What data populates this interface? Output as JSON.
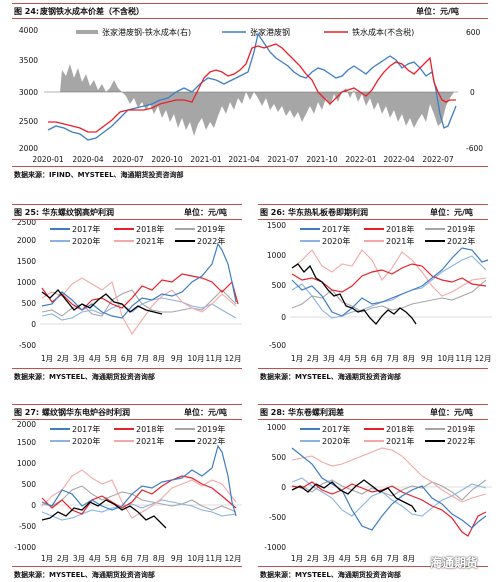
{
  "fig24": {
    "num": "图 24:",
    "title": "废钢铁水成本价差（不含税）",
    "unit": "单位：元/吨",
    "source": "数据来源：IFIND、MYSTEEL、海通期货投资咨询部",
    "chart_data": {
      "type": "line",
      "x": [
        "2020-01",
        "2020-04",
        "2020-07",
        "2020-10",
        "2021-01",
        "2021-04",
        "2021-07",
        "2021-10",
        "2022-01",
        "2022-04",
        "2022-07"
      ],
      "series": [
        {
          "name": "张家港废钢-铁水成本(右)",
          "color": "#a6a6a6",
          "kind": "area"
        },
        {
          "name": "张家港废钢",
          "color": "#3e7dc4"
        },
        {
          "name": "铁水成本(不含税)",
          "color": "#e8202a"
        }
      ],
      "y_left": {
        "min": 2000,
        "max": 4000,
        "ticks": [
          "2000",
          "2500",
          "3000",
          "3500",
          "4000"
        ]
      },
      "y_right": {
        "min": -600,
        "max": 600,
        "ticks": [
          "-600",
          "0",
          "600"
        ]
      }
    }
  },
  "fig25": {
    "num": "图 25:",
    "title": "华东螺纹钢高炉利润",
    "unit": "单位：元/吨",
    "source": "数据来源：MYSTEEL、海通期货投资咨询部",
    "chart_data": {
      "type": "line",
      "x": [
        "1月",
        "2月",
        "3月",
        "4月",
        "5月",
        "6月",
        "7月",
        "8月",
        "9月",
        "10月",
        "11月",
        "12月"
      ],
      "yticks": [
        "-500",
        "0",
        "500",
        "1000",
        "1500",
        "2000",
        "2500"
      ],
      "ylim": [
        -500,
        2500
      ]
    }
  },
  "fig26": {
    "num": "图 26:",
    "title": "华东热轧板卷即期利润",
    "unit": "单位：元/吨",
    "source": "数据来源：MYSTEEL、海通期货投资咨询部",
    "chart_data": {
      "type": "line",
      "x": [
        "1月",
        "2月",
        "3月",
        "4月",
        "5月",
        "6月",
        "7月",
        "8月",
        "9月",
        "10月",
        "11月",
        "12月"
      ],
      "yticks": [
        "-500",
        "0",
        "500",
        "1000",
        "1500"
      ],
      "ylim": [
        -500,
        1500
      ]
    }
  },
  "fig27": {
    "num": "图 27:",
    "title": "螺纹钢华东电炉谷时利润",
    "unit": "单位：元/吨",
    "source": "数据来源：MYSTEEL、海通期货投资咨询部",
    "chart_data": {
      "type": "line",
      "x": [
        "1月",
        "2月",
        "3月",
        "4月",
        "5月",
        "6月",
        "7月",
        "8月",
        "9月",
        "10月",
        "11月",
        "12月"
      ],
      "yticks": [
        "-1000",
        "-500",
        "0",
        "500",
        "1000",
        "1500",
        "2000"
      ],
      "ylim": [
        -1000,
        2000
      ]
    }
  },
  "fig28": {
    "num": "图 28:",
    "title": "华东卷螺利润差",
    "unit": "单位：元/吨",
    "source": "数据来源：MYSTEEL、海通期货投资咨询部",
    "chart_data": {
      "type": "line",
      "x": [
        "1月",
        "2月",
        "3月",
        "4月",
        "5月",
        "6月",
        "7月",
        "8月",
        "9月",
        "10月",
        "11月",
        "12月"
      ],
      "yticks": [
        "-1000",
        "-500",
        "0",
        "500",
        "1000"
      ],
      "ylim": [
        -1000,
        1000
      ]
    }
  },
  "legend_years": [
    {
      "name": "2017年",
      "color": "#3e7dc4"
    },
    {
      "name": "2018年",
      "color": "#e8202a"
    },
    {
      "name": "2019年",
      "color": "#a6a6a6"
    },
    {
      "name": "2020年",
      "color": "#8db3e2"
    },
    {
      "name": "2021年",
      "color": "#f4a8a8"
    },
    {
      "name": "2022年",
      "color": "#000000"
    }
  ],
  "watermark": "海通期货"
}
